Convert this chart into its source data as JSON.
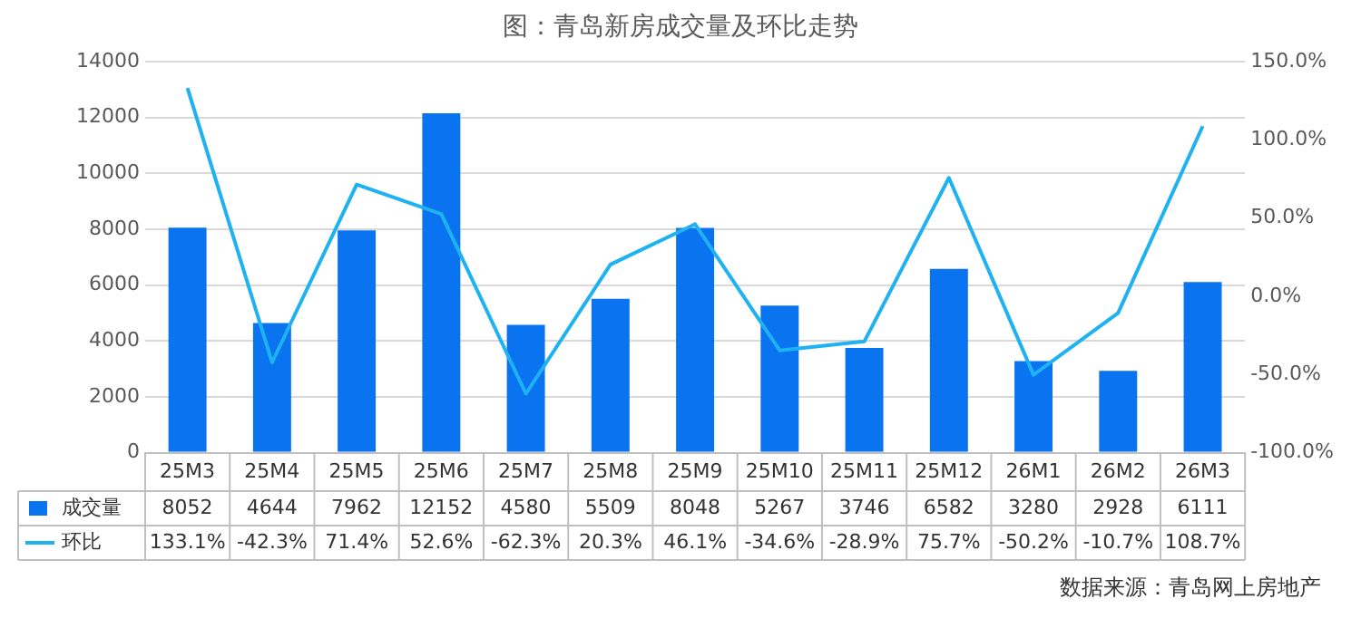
{
  "chart_data": {
    "type": "bar",
    "title": "图：青岛新房成交量及环比走势",
    "categories": [
      "25M3",
      "25M4",
      "25M5",
      "25M6",
      "25M7",
      "25M8",
      "25M9",
      "25M10",
      "25M11",
      "25M12",
      "26M1",
      "26M2",
      "26M3"
    ],
    "series": [
      {
        "name": "成交量",
        "color": "#0a74f0",
        "values": [
          8052,
          4644,
          7962,
          12152,
          4580,
          5509,
          8048,
          5267,
          3746,
          6582,
          3280,
          2928,
          6111
        ],
        "value_labels": [
          "8052",
          "4644",
          "7962",
          "12152",
          "4580",
          "5509",
          "8048",
          "5267",
          "3746",
          "6582",
          "3280",
          "2928",
          "6111"
        ]
      },
      {
        "name": "环比",
        "type": "line",
        "axis": "y2",
        "color": "#1fb2f2",
        "values": [
          133.1,
          -42.3,
          71.4,
          52.6,
          -62.3,
          20.3,
          46.1,
          -34.6,
          -28.9,
          75.7,
          -50.2,
          -10.7,
          108.7
        ],
        "value_labels": [
          "133.1%",
          "-42.3%",
          "71.4%",
          "52.6%",
          "-62.3%",
          "20.3%",
          "46.1%",
          "-34.6%",
          "-28.9%",
          "75.7%",
          "-50.2%",
          "-10.7%",
          "108.7%"
        ]
      }
    ],
    "ylim": [
      0,
      14000
    ],
    "yticks": [
      0,
      2000,
      4000,
      6000,
      8000,
      10000,
      12000,
      14000
    ],
    "y2lim": [
      -100,
      150
    ],
    "y2ticks": [
      {
        "value": -100,
        "label": "-100.0%"
      },
      {
        "value": -50,
        "label": "-50.0%"
      },
      {
        "value": 0,
        "label": "0.0%"
      },
      {
        "value": 50,
        "label": "50.0%"
      },
      {
        "value": 100,
        "label": "100.0%"
      },
      {
        "value": 150,
        "label": "150.0%"
      }
    ],
    "grid": "y",
    "legend": "bottom",
    "marker": "none",
    "line_style": "solid",
    "annotations": [
      "数据来源：青岛网上房地产"
    ]
  }
}
